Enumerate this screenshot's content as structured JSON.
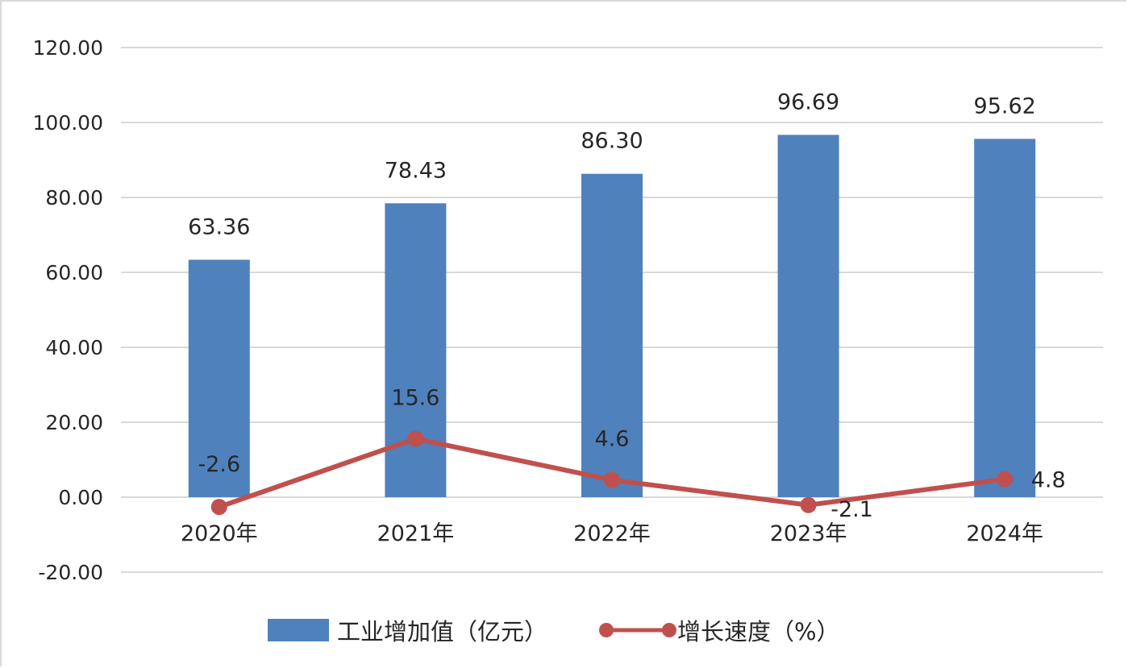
{
  "chart_data": {
    "type": "bar",
    "categories": [
      "2020年",
      "2021年",
      "2022年",
      "2023年",
      "2024年"
    ],
    "ylim": [
      -20,
      120
    ],
    "yticks": [
      "-20.00",
      "0.00",
      "20.00",
      "40.00",
      "60.00",
      "80.00",
      "100.00",
      "120.00"
    ],
    "ytick_values": [
      -20,
      0,
      20,
      40,
      60,
      80,
      100,
      120
    ],
    "grid": true,
    "legend_position": "bottom",
    "series": [
      {
        "name": "工业增加值（亿元）",
        "type": "bar",
        "color": "#4f81bd",
        "values": [
          63.36,
          78.43,
          86.3,
          96.69,
          95.62
        ],
        "labels": [
          "63.36",
          "78.43",
          "86.30",
          "96.69",
          "95.62"
        ]
      },
      {
        "name": "增长速度（%）",
        "type": "line",
        "color": "#c0504d",
        "values": [
          -2.6,
          15.6,
          4.6,
          -2.1,
          4.8
        ],
        "labels": [
          "-2.6",
          "15.6",
          "4.6",
          "-2.1",
          "4.8"
        ]
      }
    ]
  }
}
